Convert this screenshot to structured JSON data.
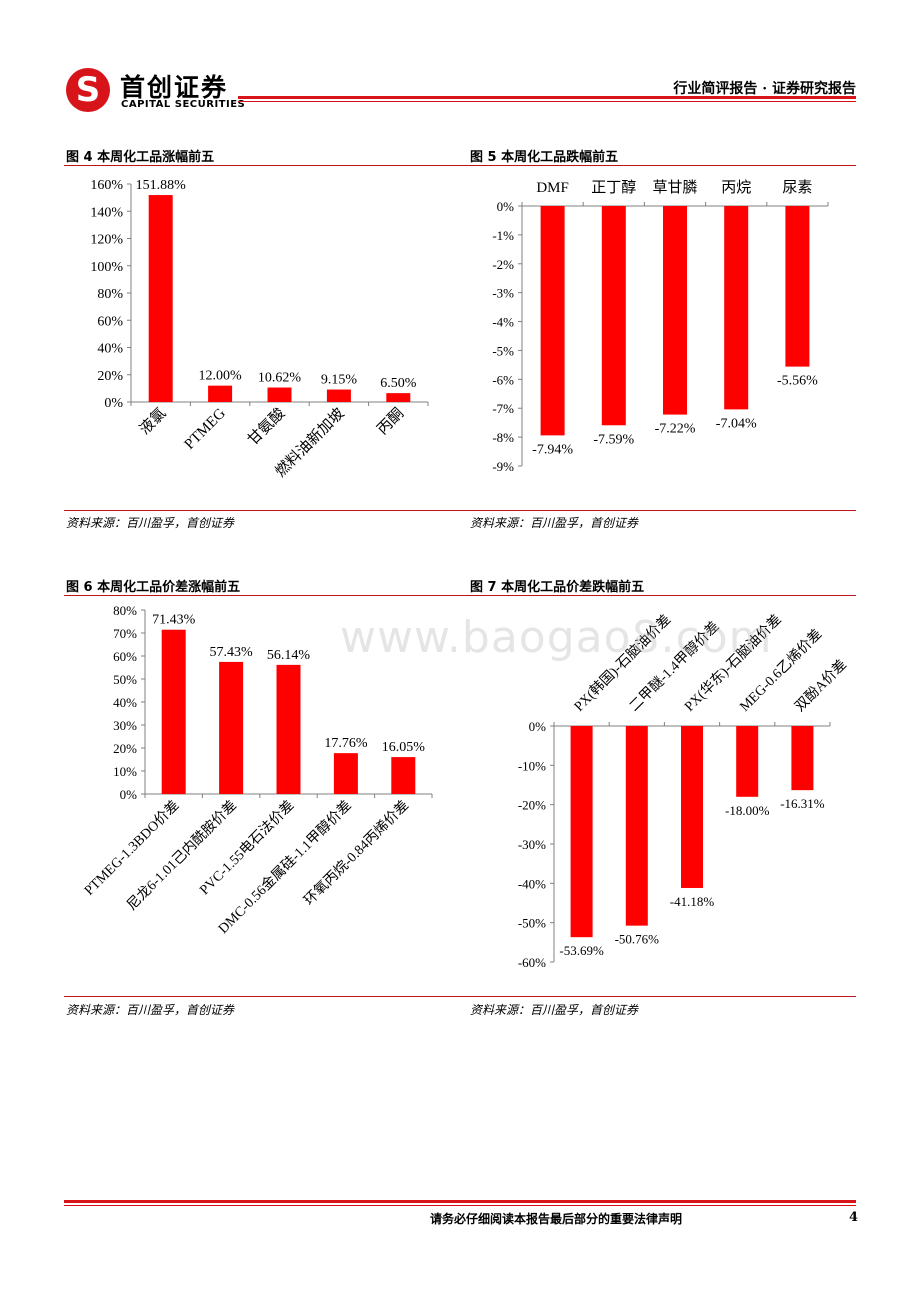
{
  "header": {
    "brand_cn": "首创证券",
    "brand_en": "CAPITAL SECURITIES",
    "doc_type": "行业简评报告 · 证券研究报告",
    "logo_icon": "capital-securities-logo-icon"
  },
  "figures": {
    "fig4": {
      "title": "图 4 本周化工品涨幅前五",
      "source": "资料来源：百川盈孚，首创证券"
    },
    "fig5": {
      "title": "图 5 本周化工品跌幅前五",
      "source": "资料来源：百川盈孚，首创证券"
    },
    "fig6": {
      "title": "图 6 本周化工品价差涨幅前五",
      "source": "资料来源：百川盈孚，首创证券"
    },
    "fig7": {
      "title": "图 7 本周化工品价差跌幅前五",
      "source": "资料来源：百川盈孚，首创证券"
    }
  },
  "watermark": "www.baogao8.com",
  "footer": {
    "disclaimer": "请务必仔细阅读本报告最后部分的重要法律声明",
    "page_number": "4"
  },
  "colors": {
    "bar": "#ff0000",
    "brand_red": "#d7141a"
  },
  "chart_data": [
    {
      "id": "fig4",
      "type": "bar",
      "title": "图 4 本周化工品涨幅前五",
      "categories": [
        "液氯",
        "PTMEG",
        "甘氨酸",
        "燃料油新加坡",
        "丙酮"
      ],
      "values": [
        151.88,
        12.0,
        10.62,
        9.15,
        6.5
      ],
      "data_labels": [
        "151.88%",
        "12.00%",
        "10.62%",
        "9.15%",
        "6.50%"
      ],
      "yticks": [
        "0%",
        "20%",
        "40%",
        "60%",
        "80%",
        "100%",
        "120%",
        "140%",
        "160%"
      ],
      "ylim": [
        0,
        160
      ],
      "grid": false
    },
    {
      "id": "fig5",
      "type": "bar",
      "title": "图 5 本周化工品跌幅前五",
      "categories": [
        "DMF",
        "正丁醇",
        "草甘膦",
        "丙烷",
        "尿素"
      ],
      "values": [
        -7.94,
        -7.59,
        -7.22,
        -7.04,
        -5.56
      ],
      "data_labels": [
        "-7.94%",
        "-7.59%",
        "-7.22%",
        "-7.04%",
        "-5.56%"
      ],
      "yticks": [
        "0%",
        "-1%",
        "-2%",
        "-3%",
        "-4%",
        "-5%",
        "-6%",
        "-7%",
        "-8%",
        "-9%"
      ],
      "ylim": [
        -9,
        0
      ],
      "grid": false
    },
    {
      "id": "fig6",
      "type": "bar",
      "title": "图 6 本周化工品价差涨幅前五",
      "categories": [
        "PTMEG-1.3BDO价差",
        "尼龙6-1.01己内酰胺价差",
        "PVC-1.55电石法价差",
        "DMC-0.56金属硅-1.1甲醇价差",
        "环氧丙烷-0.84丙烯价差"
      ],
      "values": [
        71.43,
        57.43,
        56.14,
        17.76,
        16.05
      ],
      "data_labels": [
        "71.43%",
        "57.43%",
        "56.14%",
        "17.76%",
        "16.05%"
      ],
      "yticks": [
        "0%",
        "10%",
        "20%",
        "30%",
        "40%",
        "50%",
        "60%",
        "70%",
        "80%"
      ],
      "ylim": [
        0,
        80
      ],
      "grid": false
    },
    {
      "id": "fig7",
      "type": "bar",
      "title": "图 7 本周化工品价差跌幅前五",
      "categories": [
        "PX(韩国)-石脑油价差",
        "二甲醚-1.4甲醇价差",
        "PX(华东)-石脑油价差",
        "MEG-0.6乙烯价差",
        "双酚A价差"
      ],
      "values": [
        -53.69,
        -50.76,
        -41.18,
        -18.0,
        -16.31
      ],
      "data_labels": [
        "-53.69%",
        "-50.76%",
        "-41.18%",
        "-18.00%",
        "-16.31%"
      ],
      "yticks": [
        "0%",
        "-10%",
        "-20%",
        "-30%",
        "-40%",
        "-50%",
        "-60%"
      ],
      "ylim": [
        -60,
        0
      ],
      "grid": false
    }
  ]
}
